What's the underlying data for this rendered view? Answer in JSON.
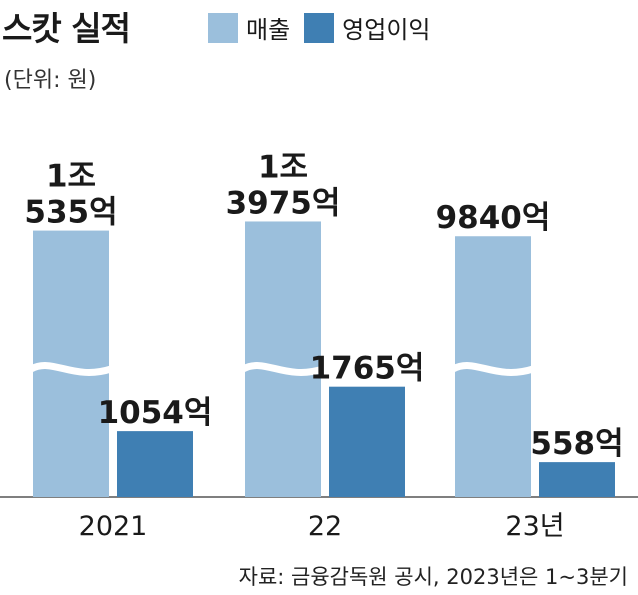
{
  "title": "스캇 실적",
  "unit_note": "(단위: 원)",
  "legend": [
    {
      "name": "매출",
      "color": "#9bbfdc"
    },
    {
      "name": "영업이익",
      "color": "#3f7fb3"
    }
  ],
  "source": "자료: 금융감독원 공시, 2023년은 1~3분기",
  "chart_data": {
    "type": "bar",
    "categories": [
      "2021",
      "22",
      "23년"
    ],
    "series": [
      {
        "name": "매출",
        "values": [
          10535,
          13975,
          9840
        ],
        "labels": [
          [
            "1조",
            "535억"
          ],
          [
            "1조",
            "3975억"
          ],
          [
            "9840억"
          ]
        ]
      },
      {
        "name": "영업이익",
        "values": [
          1054,
          1765,
          558
        ],
        "labels": [
          [
            "1054억"
          ],
          [
            "1765억"
          ],
          [
            "558억"
          ]
        ]
      }
    ],
    "axis_break": true
  }
}
